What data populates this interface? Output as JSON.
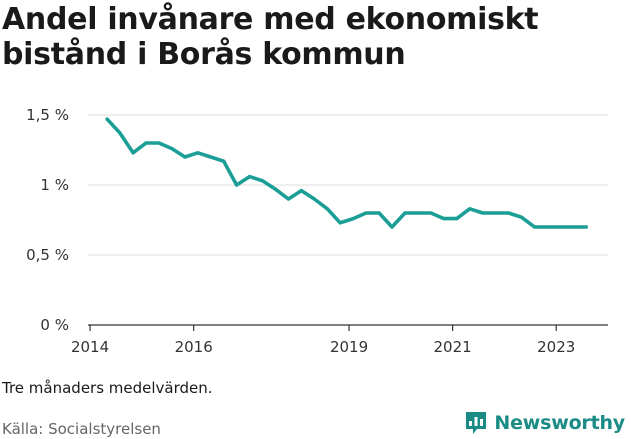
{
  "title": "Andel invånare med ekonomiskt bistånd i Borås kommun",
  "note": "Tre månaders medelvärden.",
  "source": "Källa: Socialstyrelsen",
  "brand": {
    "name": "Newsworthy",
    "icon": "newsworthy-logo-icon",
    "color": "#1a8c85"
  },
  "chart_data": {
    "type": "line",
    "title": "Andel invånare med ekonomiskt bistånd i Borås kommun",
    "xlabel": "",
    "ylabel": "",
    "x_ticks": [
      "2014",
      "2016",
      "2019",
      "2021",
      "2023"
    ],
    "x_tick_values": [
      2014.0,
      2016.0,
      2019.0,
      2021.0,
      2023.0
    ],
    "y_ticks": [
      "0 %",
      "0,5 %",
      "1 %",
      "1,5 %"
    ],
    "y_tick_values": [
      0,
      0.5,
      1.0,
      1.5
    ],
    "ylim": [
      0,
      1.5
    ],
    "xlim": [
      2013.96,
      2024.0
    ],
    "grid": true,
    "color": "#1a9e96",
    "series": [
      {
        "name": "",
        "x": [
          2014.33,
          2014.58,
          2014.83,
          2015.08,
          2015.33,
          2015.58,
          2015.83,
          2016.08,
          2016.33,
          2016.58,
          2016.83,
          2017.08,
          2017.33,
          2017.58,
          2017.83,
          2018.08,
          2018.33,
          2018.58,
          2018.83,
          2019.08,
          2019.33,
          2019.58,
          2019.83,
          2020.08,
          2020.33,
          2020.58,
          2020.83,
          2021.08,
          2021.33,
          2021.58,
          2021.83,
          2022.08,
          2022.33,
          2022.58,
          2022.83,
          2023.08,
          2023.33,
          2023.58
        ],
        "values": [
          1.47,
          1.37,
          1.23,
          1.3,
          1.3,
          1.26,
          1.2,
          1.23,
          1.2,
          1.17,
          1.0,
          1.06,
          1.03,
          0.97,
          0.9,
          0.96,
          0.9,
          0.83,
          0.73,
          0.76,
          0.8,
          0.8,
          0.7,
          0.8,
          0.8,
          0.8,
          0.76,
          0.76,
          0.83,
          0.8,
          0.8,
          0.8,
          0.77,
          0.7,
          0.7,
          0.7,
          0.7,
          0.7
        ]
      }
    ]
  }
}
